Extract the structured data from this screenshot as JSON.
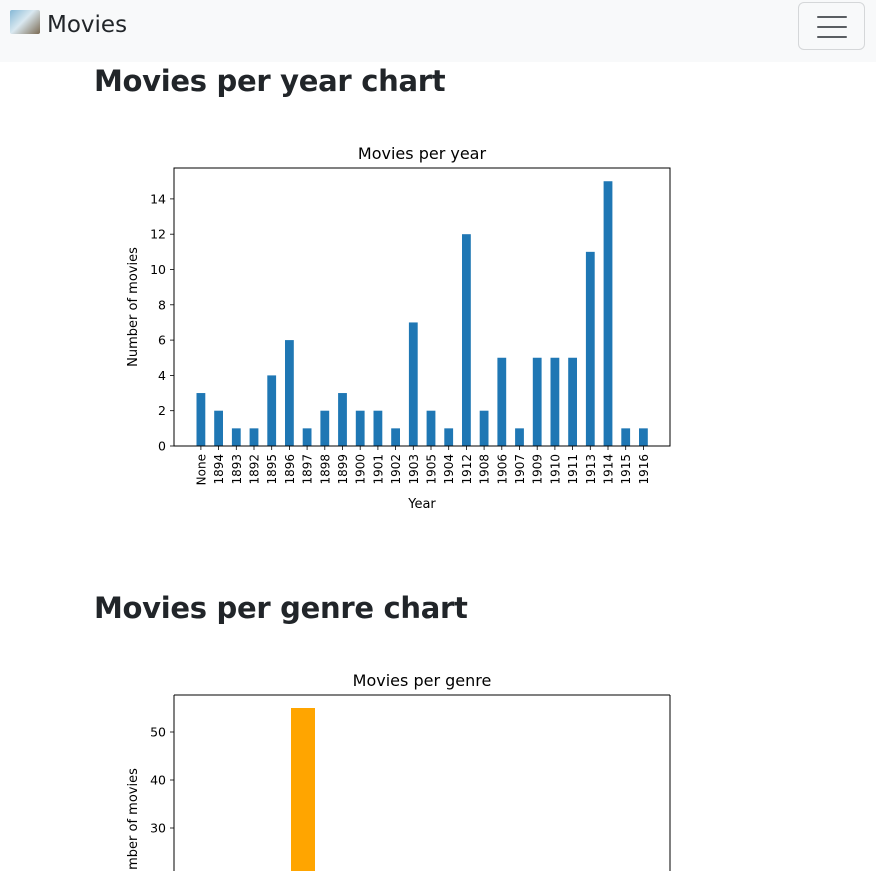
{
  "navbar": {
    "brand_text": "Movies",
    "logo_icon": "movie-poster-icon",
    "toggler_icon": "hamburger-menu-icon",
    "background": "#f8f9fa"
  },
  "sections": {
    "year_title": "Movies per year chart",
    "genre_title": "Movies per genre chart"
  },
  "chart_data": [
    {
      "type": "bar",
      "title": "Movies per year",
      "xlabel": "Year",
      "ylabel": "Number of movies",
      "categories": [
        "None",
        "1894",
        "1893",
        "1892",
        "1895",
        "1896",
        "1897",
        "1898",
        "1899",
        "1900",
        "1901",
        "1902",
        "1903",
        "1905",
        "1904",
        "1912",
        "1908",
        "1906",
        "1907",
        "1909",
        "1910",
        "1911",
        "1913",
        "1914",
        "1915",
        "1916"
      ],
      "values": [
        3,
        2,
        1,
        1,
        4,
        6,
        1,
        2,
        3,
        2,
        2,
        1,
        7,
        2,
        1,
        12,
        2,
        5,
        1,
        5,
        5,
        5,
        11,
        15,
        1,
        1
      ],
      "yticks": [
        "0",
        "2",
        "4",
        "6",
        "8",
        "10",
        "12",
        "14"
      ],
      "ylim": [
        0,
        15.75
      ],
      "color": "#1f77b4",
      "grid": false
    },
    {
      "type": "bar",
      "title": "Movies per genre",
      "ylabel": "Number of movies",
      "yticks_visible": [
        "30",
        "40",
        "50"
      ],
      "values": [
        55
      ],
      "color": "#ffa500",
      "grid": false
    }
  ]
}
